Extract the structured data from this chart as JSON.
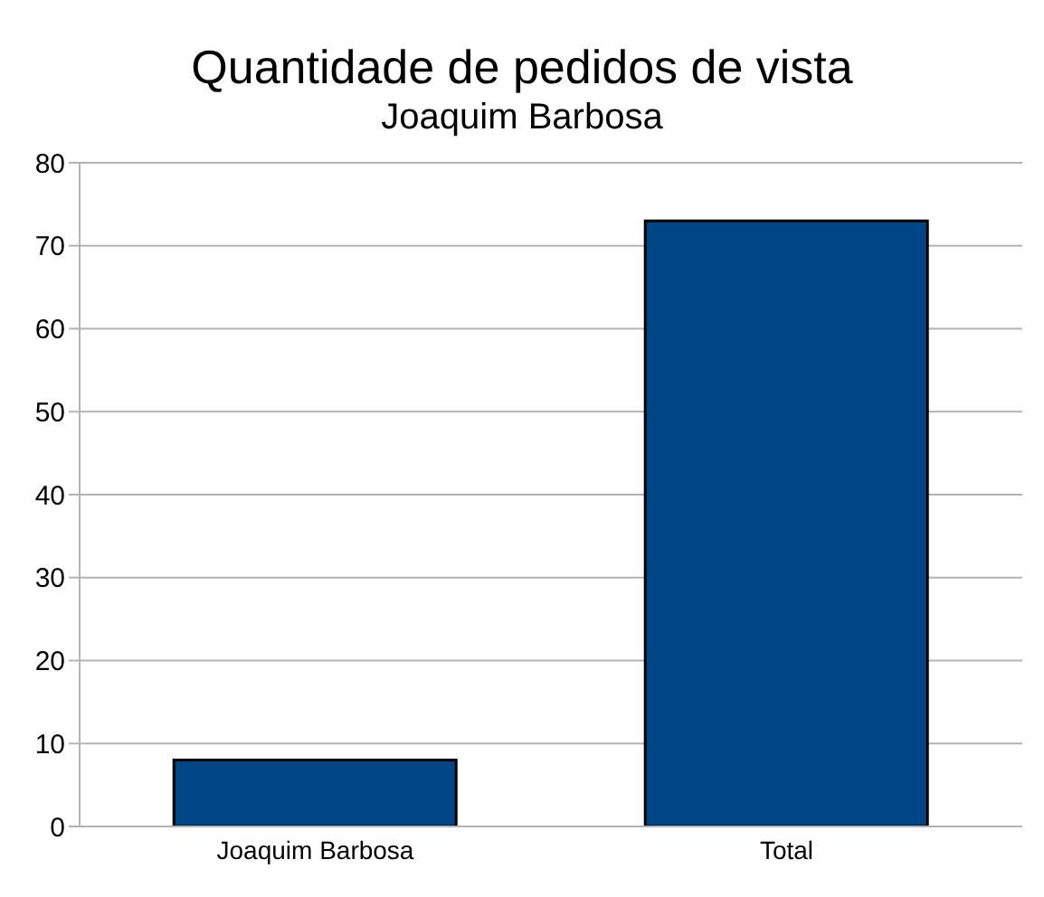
{
  "chart_data": {
    "type": "bar",
    "title": "Quantidade de pedidos de vista",
    "subtitle": "Joaquim Barbosa",
    "categories": [
      "Joaquim Barbosa",
      "Total"
    ],
    "values": [
      8,
      73
    ],
    "color": "#004586",
    "ylim": [
      0,
      80
    ],
    "yticks": [
      0,
      10,
      20,
      30,
      40,
      50,
      60,
      70,
      80
    ],
    "grid": "y"
  }
}
